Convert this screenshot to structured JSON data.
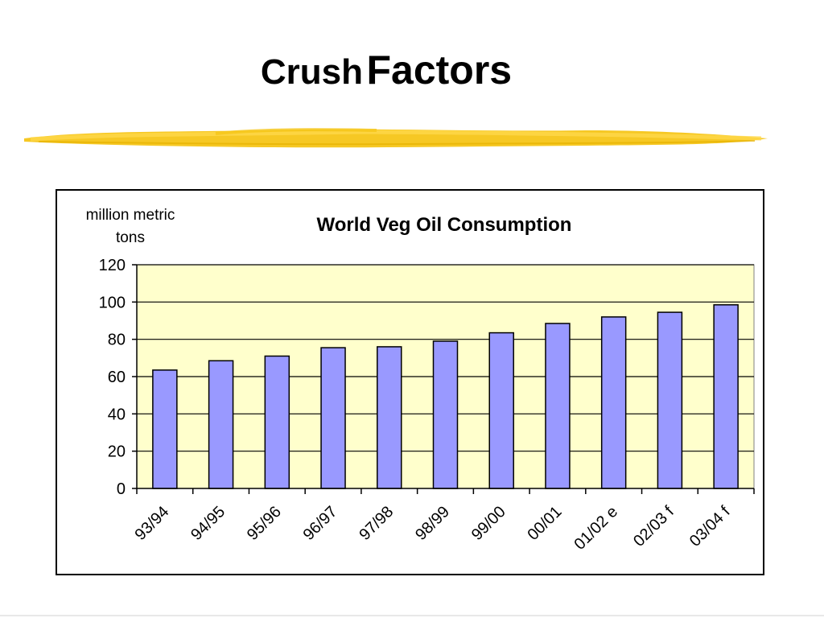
{
  "slide": {
    "title_part1": "Crush",
    "title_part2": "Factors"
  },
  "colors": {
    "bar_fill": "#9999ff",
    "plot_background": "#ffffcc",
    "underline": "#f5c518"
  },
  "chart_data": {
    "type": "bar",
    "title": "World Veg Oil Consumption",
    "ylabel_lines": [
      "million metric",
      "tons"
    ],
    "xlabel": "",
    "categories": [
      "93/94",
      "94/95",
      "95/96",
      "96/97",
      "97/98",
      "98/99",
      "99/00",
      "00/01",
      "01/02 e",
      "02/03 f",
      "03/04 f"
    ],
    "values": [
      63.5,
      68.5,
      71,
      75.5,
      76,
      79,
      83.5,
      88.5,
      92,
      94.5,
      98.5
    ],
    "ylim": [
      0,
      120
    ],
    "yticks": [
      0,
      20,
      40,
      60,
      80,
      100,
      120
    ],
    "grid": true,
    "legend": "none"
  }
}
